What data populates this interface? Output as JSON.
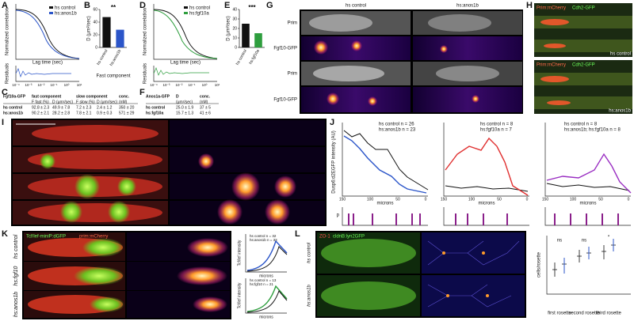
{
  "panel_labels": [
    "A",
    "B",
    "C",
    "D",
    "E",
    "F",
    "G",
    "H",
    "I",
    "J",
    "K",
    "L"
  ],
  "A": {
    "y_label": "Normalized correlation",
    "x_label": "Lag time (sec)",
    "residuals_label": "Residuals",
    "legend": [
      "hs control",
      "hs:anos1b"
    ],
    "xticks": [
      "10⁻⁴",
      "10⁻³",
      "10⁻²",
      "10⁻¹",
      "10⁰",
      "10¹"
    ]
  },
  "D": {
    "y_label": "Normalized correlation",
    "x_label": "Lag time (sec)",
    "residuals_label": "Residuals",
    "legend": [
      "hs control",
      "hs:fgf10a"
    ],
    "xticks": [
      "10⁻⁴",
      "10⁻³",
      "10⁻²",
      "10⁻¹",
      "10⁰",
      "10¹"
    ]
  },
  "B": {
    "type": "bar",
    "y_label": "D (μm²/sec)",
    "significance": "**",
    "x_label": "Fast component",
    "categories": [
      "hs control",
      "hs:anos1b"
    ],
    "values": [
      48,
      28
    ],
    "colors": [
      "#111111",
      "#2b55c9"
    ],
    "ylim": [
      0,
      60
    ],
    "yticks": [
      0,
      20,
      40,
      60
    ]
  },
  "E": {
    "type": "bar",
    "y_label": "D (μm²/sec)",
    "significance": "***",
    "categories": [
      "hs control",
      "hs:fgf10a"
    ],
    "values": [
      25,
      15
    ],
    "colors": [
      "#111111",
      "#2e9e3e"
    ],
    "ylim": [
      0,
      40
    ],
    "yticks": [
      0,
      10,
      20,
      30,
      40
    ]
  },
  "C": {
    "header": [
      "Fgf10a-GFP",
      "fast component",
      "",
      "slow component",
      "",
      "conc."
    ],
    "subheader": [
      "",
      "F fast (%)",
      "D (μm²/sec)",
      "F slow (%)",
      "D (μm²/sec)",
      "(nM)"
    ],
    "rows": [
      [
        "hs control",
        "92.8 ± 2.3",
        "49.9 ± 7.8",
        "7.2 ± 2.3",
        "2.4 ± 1.2",
        "350 ± 20"
      ],
      [
        "hs:anos1b",
        "90.2 ± 2.1",
        "28.2 ± 2.8",
        "7.8 ± 2.1",
        "0.9 ± 0.3",
        "571 ± 29"
      ]
    ]
  },
  "F": {
    "header": [
      "Anos1a-GFP",
      "D",
      "conc."
    ],
    "subheader": [
      "",
      "(μm²/sec)",
      "(nM)"
    ],
    "rows": [
      [
        "hs control",
        "25.0 ± 1.9",
        "37 ± 5"
      ],
      [
        "hs:fgf10a",
        "15.7 ± 1.3",
        "41 ± 6"
      ]
    ]
  },
  "G": {
    "columns": [
      "hs control",
      "hs:anos1b"
    ],
    "rows": [
      "Prim",
      "Fgf10-GFP",
      "Prim",
      "Fgf10-GFP"
    ]
  },
  "H": {
    "rows": [
      "hs control",
      "hs:anos1b"
    ],
    "channels": [
      "Prim:mCherry",
      "Cdh2-GFP"
    ]
  },
  "J": {
    "y_label": "Dusp6:d2EGFP intensity (AU)",
    "x_label": "microns",
    "p_label": "p",
    "legends": [
      [
        "hs control  n = 26",
        "hs:anos1b  n = 23"
      ],
      [
        "hs control  n = 8",
        "hs:fgf10a  n = 7"
      ],
      [
        "hs control  n = 8",
        "hs:anos1b; hs:fgf10a  n = 8"
      ]
    ],
    "xticks": [
      "150",
      "100",
      "50",
      "0"
    ]
  },
  "K": {
    "channels": [
      "Tcf/lef-miniP:dGFP",
      "prim:mCherry"
    ],
    "rows": [
      "hs control",
      "hs:fgf10",
      "hs:anos1b"
    ],
    "y_label": "Tcf/lef intensity",
    "x_label": "microns",
    "legends": [
      [
        "hs control  n = 32",
        "hs:anos1b  n = 33"
      ],
      [
        "hs control  n = 13",
        "hs:fgf10  n = 21"
      ]
    ]
  },
  "L": {
    "channels": [
      "ZO-1",
      "cldnB:lyn2GFP"
    ],
    "rows": [
      "hs control",
      "hs:anos1b"
    ],
    "y_label": "cells/rosette",
    "groups": [
      "first rosette",
      "second rosette",
      "third rosette"
    ],
    "significance": [
      "ns",
      "ns",
      "*"
    ]
  }
}
